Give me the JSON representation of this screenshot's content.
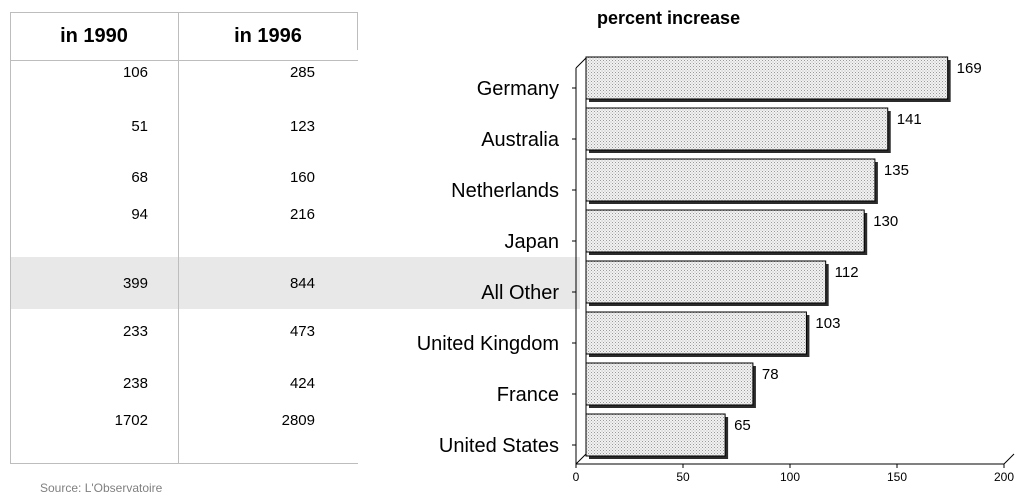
{
  "table": {
    "headers": [
      "in 1990",
      "in 1996"
    ],
    "rows": [
      {
        "country": "Germany",
        "v1990": "106",
        "v1996": "285"
      },
      {
        "country": "Australia",
        "v1990": "51",
        "v1996": "123"
      },
      {
        "country": "Netherlands",
        "v1990": "68",
        "v1996": "160"
      },
      {
        "country": "Japan",
        "v1990": "94",
        "v1996": "216"
      },
      {
        "country": "All Other",
        "v1990": "399",
        "v1996": "844"
      },
      {
        "country": "United Kingdom",
        "v1990": "233",
        "v1996": "473"
      },
      {
        "country": "France",
        "v1990": "238",
        "v1996": "424"
      },
      {
        "country": "United States",
        "v1990": "1702",
        "v1996": "2809"
      }
    ]
  },
  "source": "Source:  L'Observatoire",
  "chart_data": {
    "type": "bar",
    "orientation": "horizontal",
    "title": "percent increase",
    "categories": [
      "Germany",
      "Australia",
      "Netherlands",
      "Japan",
      "All Other",
      "United Kingdom",
      "France",
      "United States"
    ],
    "values": [
      169,
      141,
      135,
      130,
      112,
      103,
      78,
      65
    ],
    "data_labels": [
      "169",
      "141",
      "135",
      "130",
      "112",
      "103",
      "78",
      "65"
    ],
    "xlim": [
      0,
      200
    ],
    "xticks": [
      0,
      50,
      100,
      150,
      200
    ],
    "xtick_labels": [
      "0",
      "50",
      "100",
      "150",
      "200"
    ],
    "bar_style": "3d-shaded",
    "bar_fill": "#e6e6e6",
    "bar_shadow": "#2b2b2b",
    "highlight_row": "All Other",
    "highlight_color": "#e8e8e8"
  }
}
